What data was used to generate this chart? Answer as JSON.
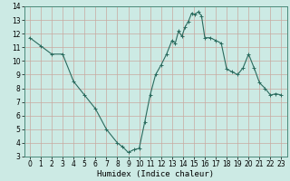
{
  "x": [
    0,
    1,
    2,
    3,
    4,
    5,
    6,
    7,
    8,
    8.5,
    9,
    9.5,
    10,
    10.5,
    11,
    11.5,
    12,
    12.5,
    13,
    13.3,
    13.6,
    13.9,
    14.2,
    14.5,
    14.8,
    15.1,
    15.4,
    15.7,
    16,
    16.5,
    17,
    17.5,
    18,
    18.5,
    19,
    19.5,
    20,
    20.5,
    21,
    21.5,
    22,
    22.5,
    23
  ],
  "y": [
    11.7,
    11.1,
    10.5,
    10.5,
    8.5,
    7.5,
    6.5,
    5.0,
    4.0,
    3.7,
    3.3,
    3.5,
    3.6,
    5.5,
    7.5,
    9.0,
    9.7,
    10.5,
    11.5,
    11.3,
    12.2,
    11.8,
    12.5,
    12.9,
    13.5,
    13.4,
    13.6,
    13.3,
    11.7,
    11.7,
    11.5,
    11.3,
    9.4,
    9.2,
    9.0,
    9.5,
    10.5,
    9.5,
    8.4,
    8.0,
    7.5,
    7.6,
    7.5
  ],
  "xlabel": "Humidex (Indice chaleur)",
  "xlim": [
    -0.5,
    23.5
  ],
  "ylim": [
    3,
    14
  ],
  "xticks": [
    0,
    1,
    2,
    3,
    4,
    5,
    6,
    7,
    8,
    9,
    10,
    11,
    12,
    13,
    14,
    15,
    16,
    17,
    18,
    19,
    20,
    21,
    22,
    23
  ],
  "yticks": [
    3,
    4,
    5,
    6,
    7,
    8,
    9,
    10,
    11,
    12,
    13,
    14
  ],
  "line_color": "#2a6b5e",
  "marker": "+",
  "marker_size": 3.5,
  "bg_color": "#cceae4",
  "grid_color": "#b8ddd6",
  "spine_color": "#4a8a7a",
  "tick_label_fontsize": 5.5,
  "xlabel_fontsize": 6.5
}
